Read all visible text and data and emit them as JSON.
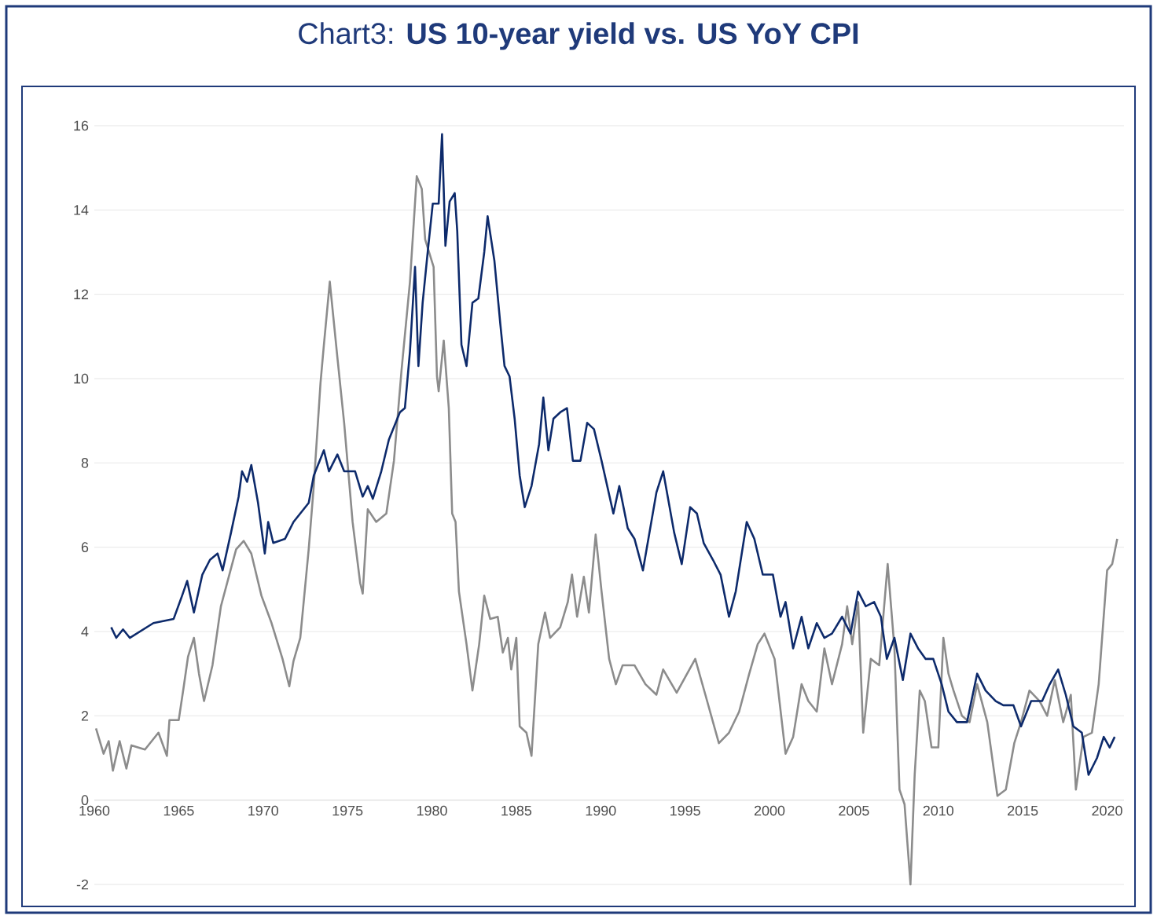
{
  "chart_data": {
    "type": "line",
    "title": "Chart3: **US 10-year yield vs. US YoY CPI**",
    "xlim": [
      1960,
      2021
    ],
    "ylim": [
      -2,
      16
    ],
    "xticks": [
      1960,
      1965,
      1970,
      1975,
      1980,
      1985,
      1990,
      1995,
      2000,
      2005,
      2010,
      2015,
      2020
    ],
    "yticks": [
      -2,
      0,
      2,
      4,
      6,
      8,
      10,
      12,
      14,
      16
    ],
    "grid": "y",
    "marker": "none",
    "line_style": "solid",
    "series": [
      {
        "color": "#8c8c8c",
        "x": [
          1960.1,
          1960.55,
          1960.85,
          1961.1,
          1961.5,
          1961.9,
          1962.2,
          1963.0,
          1963.8,
          1964.3,
          1964.45,
          1965.0,
          1965.3,
          1965.55,
          1965.9,
          1966.2,
          1966.5,
          1967.0,
          1967.5,
          1967.9,
          1968.4,
          1968.85,
          1969.3,
          1969.9,
          1970.5,
          1971.15,
          1971.55,
          1971.8,
          1972.2,
          1972.7,
          1973.0,
          1973.4,
          1973.6,
          1973.95,
          1974.4,
          1974.8,
          1975.3,
          1975.75,
          1975.9,
          1976.2,
          1976.7,
          1977.3,
          1977.75,
          1978.2,
          1978.7,
          1979.1,
          1979.4,
          1979.6,
          1980.1,
          1980.3,
          1980.4,
          1980.7,
          1981.0,
          1981.2,
          1981.4,
          1981.6,
          1982.05,
          1982.4,
          1982.8,
          1983.1,
          1983.45,
          1983.9,
          1984.2,
          1984.5,
          1984.7,
          1985.0,
          1985.2,
          1985.6,
          1985.9,
          1986.3,
          1986.7,
          1987.0,
          1987.6,
          1988.05,
          1988.3,
          1988.6,
          1989.0,
          1989.3,
          1989.7,
          1990.05,
          1990.5,
          1990.9,
          1991.3,
          1992.0,
          1992.65,
          1993.3,
          1993.7,
          1994.5,
          1995.6,
          1996.2,
          1997.0,
          1997.6,
          1998.2,
          1998.8,
          1999.3,
          1999.7,
          2000.3,
          2000.95,
          2001.4,
          2001.9,
          2002.3,
          2002.8,
          2003.25,
          2003.7,
          2004.3,
          2004.6,
          2004.9,
          2005.25,
          2005.55,
          2006.0,
          2006.5,
          2007.0,
          2007.4,
          2007.7,
          2008.0,
          2008.35,
          2008.6,
          2008.9,
          2009.2,
          2009.6,
          2010.0,
          2010.3,
          2010.6,
          2010.9,
          2011.4,
          2011.85,
          2012.3,
          2012.9,
          2013.5,
          2014.0,
          2014.5,
          2014.9,
          2015.4,
          2016.0,
          2016.45,
          2016.9,
          2017.4,
          2017.85,
          2018.15,
          2018.6,
          2019.1,
          2019.5,
          2020.0,
          2020.3,
          2020.6
        ],
        "values": [
          1.7,
          1.1,
          1.4,
          0.7,
          1.4,
          0.75,
          1.3,
          1.2,
          1.6,
          1.05,
          1.9,
          1.9,
          2.7,
          3.4,
          3.85,
          3.0,
          2.35,
          3.2,
          4.6,
          5.2,
          5.95,
          6.15,
          5.85,
          4.85,
          4.2,
          3.35,
          2.7,
          3.3,
          3.85,
          5.95,
          7.45,
          9.9,
          10.8,
          12.3,
          10.5,
          8.95,
          6.6,
          5.15,
          4.9,
          6.9,
          6.6,
          6.8,
          8.05,
          10.2,
          12.3,
          14.8,
          14.5,
          13.3,
          12.65,
          10.05,
          9.7,
          10.9,
          9.3,
          6.8,
          6.6,
          4.95,
          3.7,
          2.6,
          3.7,
          4.85,
          4.3,
          4.35,
          3.5,
          3.85,
          3.1,
          3.85,
          1.75,
          1.6,
          1.05,
          3.7,
          4.45,
          3.85,
          4.1,
          4.7,
          5.35,
          4.35,
          5.3,
          4.45,
          6.3,
          4.95,
          3.35,
          2.75,
          3.2,
          3.2,
          2.75,
          2.5,
          3.1,
          2.55,
          3.35,
          2.5,
          1.35,
          1.6,
          2.1,
          3.0,
          3.7,
          3.95,
          3.35,
          1.1,
          1.5,
          2.75,
          2.35,
          2.1,
          3.6,
          2.75,
          3.7,
          4.6,
          3.7,
          4.7,
          1.6,
          3.35,
          3.2,
          5.6,
          3.6,
          0.25,
          -0.1,
          -2.0,
          0.6,
          2.6,
          2.35,
          1.25,
          1.25,
          3.85,
          3.0,
          2.6,
          2.0,
          1.85,
          2.75,
          1.85,
          0.1,
          0.25,
          1.35,
          1.85,
          2.6,
          2.35,
          2.0,
          2.85,
          1.85,
          2.5,
          0.25,
          1.5,
          1.6,
          2.75,
          5.45,
          5.6,
          6.2
        ]
      },
      {
        "color": "#0d2a6b",
        "x": [
          1961.0,
          1961.3,
          1961.7,
          1962.1,
          1963.5,
          1964.7,
          1965.2,
          1965.5,
          1965.9,
          1966.4,
          1966.85,
          1967.3,
          1967.6,
          1968.1,
          1968.55,
          1968.75,
          1969.05,
          1969.3,
          1969.7,
          1970.1,
          1970.3,
          1970.6,
          1971.3,
          1971.8,
          1972.2,
          1972.7,
          1973.0,
          1973.6,
          1973.9,
          1974.4,
          1974.8,
          1975.45,
          1975.9,
          1976.2,
          1976.5,
          1977.0,
          1977.45,
          1978.1,
          1978.4,
          1978.7,
          1979.0,
          1979.2,
          1979.45,
          1979.75,
          1980.05,
          1980.4,
          1980.6,
          1980.8,
          1981.05,
          1981.35,
          1981.5,
          1981.75,
          1982.05,
          1982.4,
          1982.75,
          1983.1,
          1983.3,
          1983.7,
          1984.05,
          1984.3,
          1984.6,
          1984.9,
          1985.2,
          1985.5,
          1985.9,
          1986.35,
          1986.6,
          1986.9,
          1987.2,
          1987.6,
          1988.0,
          1988.35,
          1988.8,
          1989.2,
          1989.6,
          1990.05,
          1990.75,
          1991.1,
          1991.6,
          1992.0,
          1992.5,
          1993.3,
          1993.7,
          1994.35,
          1994.8,
          1995.3,
          1995.7,
          1996.1,
          1996.65,
          1997.1,
          1997.6,
          1998.0,
          1998.65,
          1999.1,
          1999.6,
          2000.2,
          2000.65,
          2000.95,
          2001.4,
          2001.9,
          2002.3,
          2002.8,
          2003.25,
          2003.7,
          2004.3,
          2004.8,
          2005.25,
          2005.7,
          2006.2,
          2006.6,
          2006.95,
          2007.4,
          2007.9,
          2008.35,
          2008.8,
          2009.25,
          2009.7,
          2010.2,
          2010.6,
          2011.1,
          2011.7,
          2012.3,
          2012.8,
          2013.4,
          2013.85,
          2014.45,
          2014.9,
          2015.5,
          2016.15,
          2016.6,
          2017.1,
          2017.55,
          2018.0,
          2018.5,
          2018.9,
          2019.4,
          2019.8,
          2020.15,
          2020.45
        ],
        "values": [
          4.1,
          3.85,
          4.05,
          3.85,
          4.2,
          4.3,
          4.85,
          5.2,
          4.45,
          5.35,
          5.7,
          5.85,
          5.45,
          6.35,
          7.2,
          7.8,
          7.55,
          7.95,
          7.05,
          5.85,
          6.6,
          6.1,
          6.2,
          6.6,
          6.8,
          7.05,
          7.7,
          8.3,
          7.8,
          8.2,
          7.8,
          7.8,
          7.2,
          7.45,
          7.15,
          7.8,
          8.55,
          9.2,
          9.3,
          10.65,
          12.65,
          10.3,
          11.8,
          13.0,
          14.15,
          14.15,
          15.8,
          13.15,
          14.2,
          14.4,
          13.5,
          10.8,
          10.3,
          11.8,
          11.9,
          13.0,
          13.85,
          12.8,
          11.3,
          10.3,
          10.05,
          9.05,
          7.7,
          6.95,
          7.45,
          8.45,
          9.55,
          8.3,
          9.05,
          9.2,
          9.3,
          8.05,
          8.05,
          8.95,
          8.8,
          8.05,
          6.8,
          7.45,
          6.45,
          6.2,
          5.45,
          7.3,
          7.8,
          6.35,
          5.6,
          6.95,
          6.8,
          6.1,
          5.7,
          5.35,
          4.35,
          4.95,
          6.6,
          6.2,
          5.35,
          5.35,
          4.35,
          4.7,
          3.6,
          4.35,
          3.6,
          4.2,
          3.85,
          3.95,
          4.35,
          3.95,
          4.95,
          4.6,
          4.7,
          4.35,
          3.35,
          3.85,
          2.85,
          3.95,
          3.6,
          3.35,
          3.35,
          2.75,
          2.1,
          1.85,
          1.85,
          3.0,
          2.6,
          2.35,
          2.25,
          2.25,
          1.75,
          2.35,
          2.35,
          2.75,
          3.1,
          2.5,
          1.75,
          1.6,
          0.6,
          1.0,
          1.5,
          1.25,
          1.5
        ]
      }
    ]
  }
}
